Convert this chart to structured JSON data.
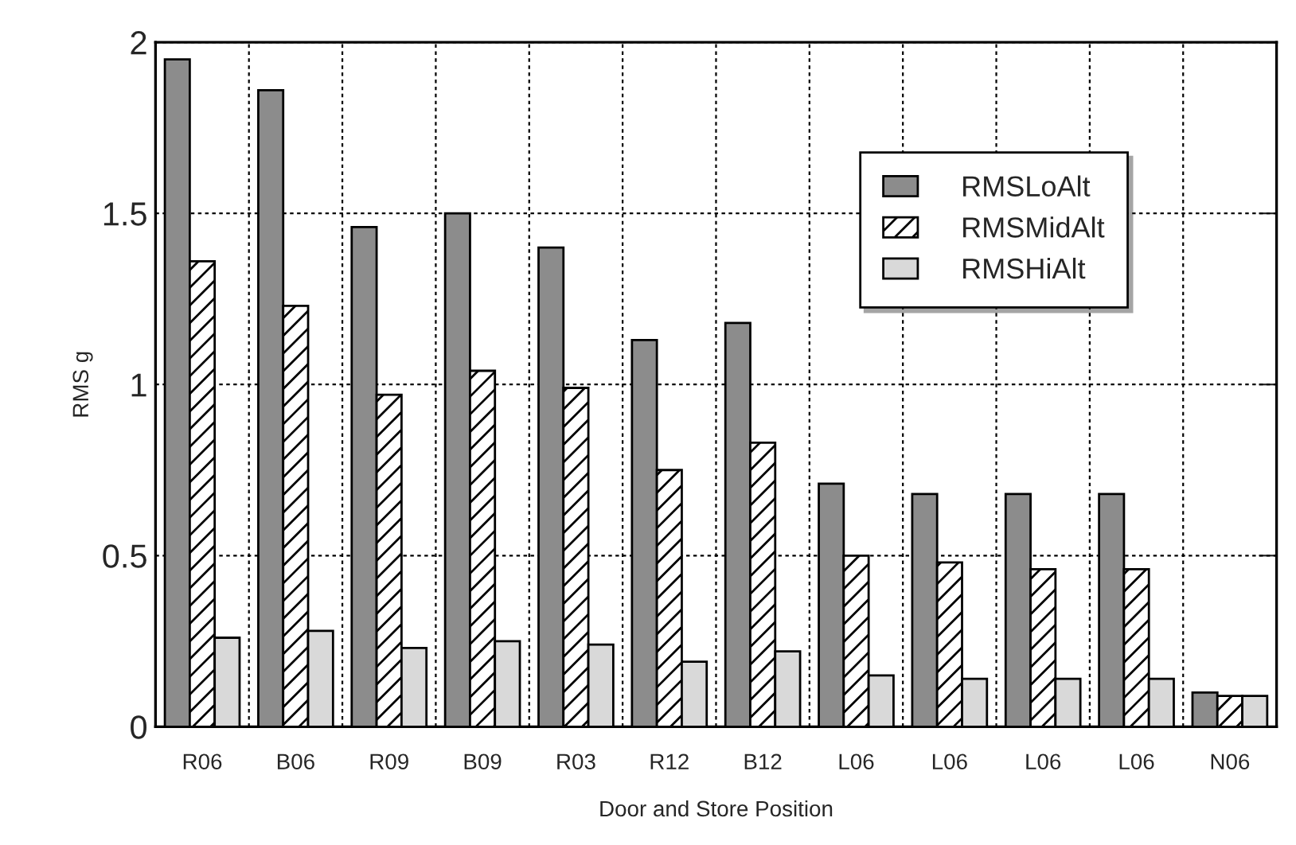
{
  "chart_data": {
    "type": "bar",
    "xlabel": "Door and Store Position",
    "ylabel": "RMS g",
    "categories": [
      "R06",
      "B06",
      "R09",
      "B09",
      "R03",
      "R12",
      "B12",
      "L06",
      "L06",
      "L06",
      "L06",
      "N06"
    ],
    "series": [
      {
        "name": "RMSLoAlt",
        "color": "#8c8c8c",
        "values": [
          1.95,
          1.86,
          1.46,
          1.5,
          1.4,
          1.13,
          1.18,
          0.71,
          0.68,
          0.68,
          0.68,
          0.1
        ]
      },
      {
        "name": "RMSMidAlt",
        "color": "#ffffff",
        "values": [
          1.36,
          1.23,
          0.97,
          1.04,
          0.99,
          0.75,
          0.83,
          0.5,
          0.48,
          0.46,
          0.46,
          0.09
        ]
      },
      {
        "name": "RMSHiAlt",
        "color": "#d9d9d9",
        "values": [
          0.26,
          0.28,
          0.23,
          0.25,
          0.24,
          0.19,
          0.22,
          0.15,
          0.14,
          0.14,
          0.14,
          0.09
        ]
      }
    ],
    "ylim": [
      0,
      2
    ],
    "yticks": [
      0,
      0.5,
      1,
      1.5,
      2
    ],
    "grid": true,
    "legend": "top right"
  }
}
